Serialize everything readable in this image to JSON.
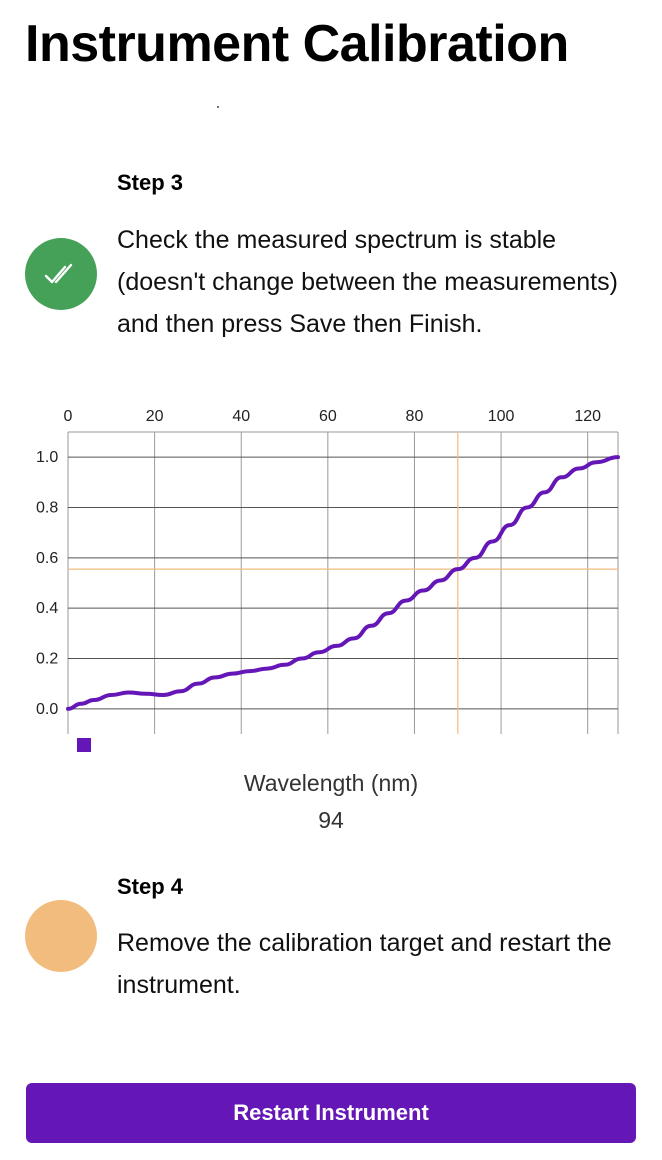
{
  "page": {
    "title": "Instrument Calibration"
  },
  "steps": [
    {
      "label": "Step 3",
      "status": "done",
      "status_icon": "double-check-icon",
      "status_color": "#46a158",
      "text": "Check the measured spectrum is stable (doesn't change between the measurements) and then press Save then Finish."
    },
    {
      "label": "Step 4",
      "status": "pending",
      "status_color": "#f2bc7f",
      "text": "Remove the calibration target and restart the instrument."
    }
  ],
  "chart_data": {
    "type": "line",
    "xlabel": "Wavelength (nm)",
    "ylabel": "",
    "xlim": [
      0,
      127
    ],
    "ylim": [
      -0.1,
      1.1
    ],
    "x_ticks": [
      0,
      20,
      40,
      60,
      80,
      100,
      120
    ],
    "y_ticks": [
      0.0,
      0.2,
      0.4,
      0.6,
      0.8,
      1.0
    ],
    "y_tick_labels": [
      "0.0",
      "0.2",
      "0.4",
      "0.6",
      "0.8",
      "1.0"
    ],
    "grid": true,
    "legend": "bottom-left",
    "series": [
      {
        "color": "#6516b6",
        "x": [
          0,
          3,
          6,
          10,
          14,
          18,
          22,
          26,
          30,
          34,
          38,
          42,
          46,
          50,
          54,
          58,
          62,
          66,
          70,
          74,
          78,
          82,
          86,
          90,
          94,
          98,
          102,
          106,
          110,
          114,
          118,
          122,
          127
        ],
        "y": [
          0.0,
          0.02,
          0.035,
          0.055,
          0.065,
          0.06,
          0.055,
          0.07,
          0.1,
          0.125,
          0.14,
          0.15,
          0.16,
          0.175,
          0.2,
          0.225,
          0.25,
          0.28,
          0.33,
          0.38,
          0.43,
          0.47,
          0.51,
          0.555,
          0.6,
          0.665,
          0.73,
          0.8,
          0.86,
          0.92,
          0.955,
          0.98,
          1.0
        ]
      }
    ],
    "crosshair": {
      "x": 90,
      "y": 0.555,
      "color": "#f2bc7f"
    },
    "readout": "94"
  },
  "actions": {
    "restart_label": "Restart Instrument",
    "restart_color": "#6516b6"
  }
}
